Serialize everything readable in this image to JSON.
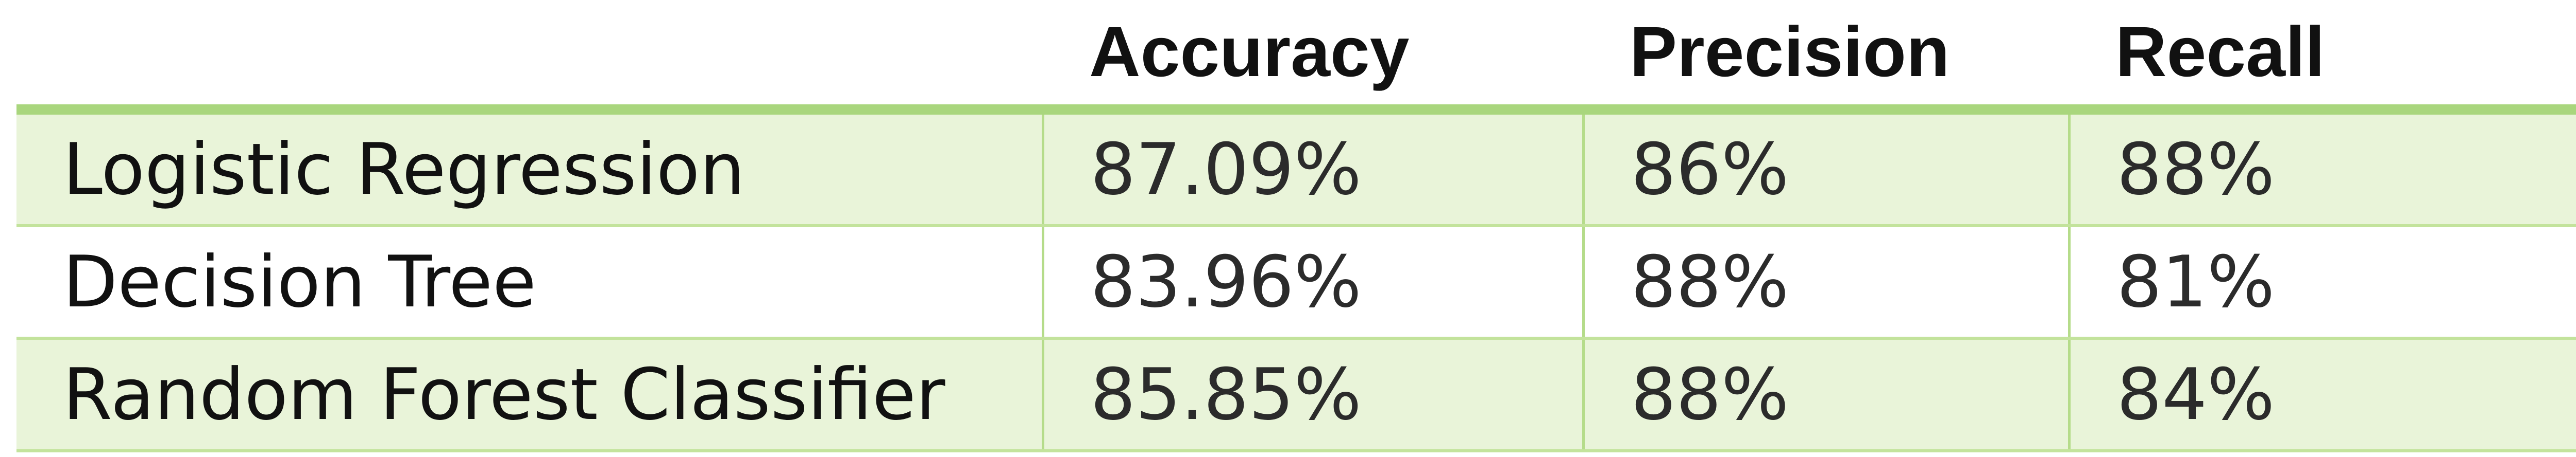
{
  "chart_data": {
    "type": "table",
    "columns": [
      "",
      "Accuracy",
      "Precision",
      "Recall"
    ],
    "rows": [
      {
        "model": "Logistic Regression",
        "accuracy": "87.09%",
        "precision": "86%",
        "recall": "88%"
      },
      {
        "model": "Decision Tree",
        "accuracy": "83.96%",
        "precision": "88%",
        "recall": "81%"
      },
      {
        "model": "Random Forest Classifier",
        "accuracy": "85.85%",
        "precision": "88%",
        "recall": "84%"
      }
    ],
    "colors": {
      "header_rule": "#a9d67d",
      "band_fill": "#e9f4d9",
      "grid_line": "#b5dc8a"
    }
  }
}
